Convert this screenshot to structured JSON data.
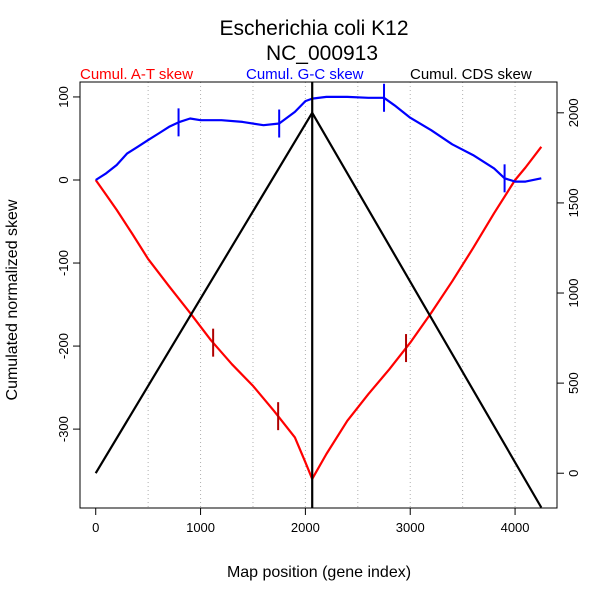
{
  "chart_data": {
    "type": "line",
    "title": "Escherichia coli K12",
    "subtitle": "NC_000913",
    "xlabel": "Map position (gene index)",
    "ylabel": "Cumulated normalized skew",
    "xlim": [
      -150,
      4400
    ],
    "ylim": [
      -395,
      118
    ],
    "ylim_right": [
      -193,
      2171
    ],
    "grid_x": true,
    "grid_x_positions": [
      500,
      1000,
      1500,
      2000,
      2500,
      3000,
      3500,
      4000
    ],
    "x_ticks": [
      0,
      1000,
      2000,
      3000,
      4000
    ],
    "y_ticks_left": [
      100,
      0,
      -100,
      -200,
      -300
    ],
    "y_ticks_right": [
      2000,
      1500,
      1000,
      500,
      0
    ],
    "vertical_line_x": 2065,
    "series": [
      {
        "name": "Cumul. A-T skew",
        "axis": "left",
        "color": "#ff0000",
        "x": [
          0,
          100,
          200,
          350,
          500,
          700,
          900,
          1100,
          1300,
          1500,
          1700,
          1900,
          2000,
          2065,
          2200,
          2400,
          2600,
          2800,
          3000,
          3200,
          3400,
          3600,
          3800,
          4000,
          4100,
          4250
        ],
        "values": [
          0,
          -18,
          -36,
          -65,
          -95,
          -128,
          -160,
          -193,
          -222,
          -248,
          -278,
          -310,
          -340,
          -360,
          -330,
          -290,
          -258,
          -228,
          -196,
          -160,
          -122,
          -82,
          -40,
          0,
          15,
          40
        ]
      },
      {
        "name": "Cumul. G-C skew",
        "axis": "left",
        "color": "#0000ff",
        "x": [
          0,
          100,
          200,
          300,
          400,
          500,
          600,
          700,
          800,
          900,
          1000,
          1200,
          1400,
          1600,
          1750,
          1900,
          2000,
          2065,
          2200,
          2400,
          2600,
          2750,
          2850,
          3000,
          3200,
          3400,
          3600,
          3800,
          3900,
          4000,
          4100,
          4250
        ],
        "values": [
          0,
          8,
          18,
          32,
          40,
          48,
          56,
          64,
          70,
          74,
          72,
          72,
          70,
          66,
          68,
          82,
          95,
          98,
          100,
          100,
          99,
          99,
          90,
          75,
          60,
          43,
          30,
          14,
          2,
          -2,
          -2,
          2
        ]
      },
      {
        "name": "Cumul. CDS skew",
        "axis": "right",
        "color": "#000000",
        "x": [
          0,
          2065,
          4250
        ],
        "values": [
          0,
          2000,
          -190
        ]
      }
    ],
    "tick_marks": [
      {
        "series": "Cumul. A-T skew",
        "color": "#b00000",
        "x": [
          1120,
          1740,
          2960
        ]
      },
      {
        "series": "Cumul. G-C skew",
        "color": "#0000ff",
        "x": [
          790,
          1750,
          2750,
          3900
        ]
      }
    ]
  }
}
